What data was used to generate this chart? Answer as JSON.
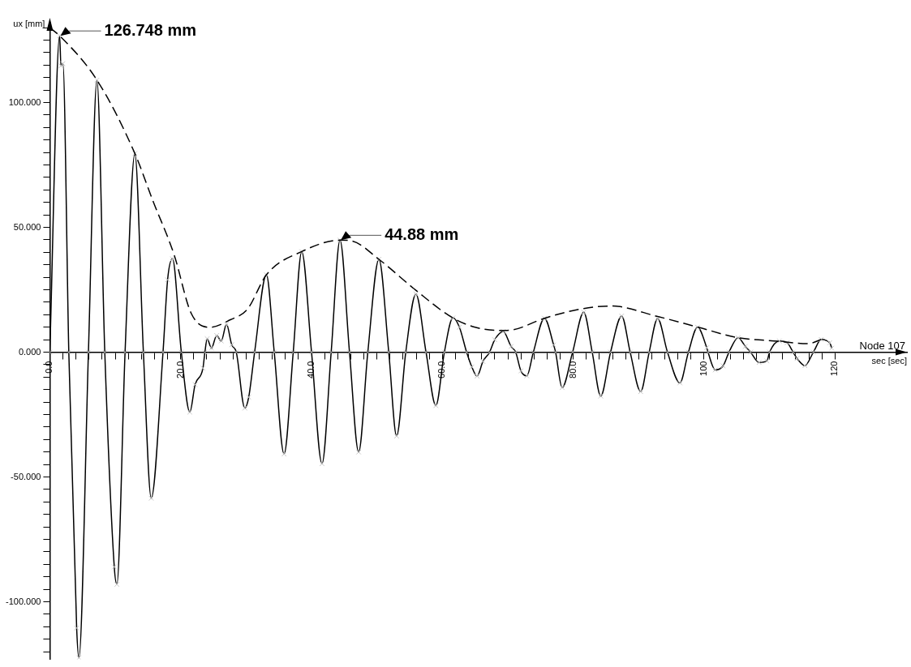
{
  "chart_data": {
    "type": "line",
    "ylabel": "ux [mm]",
    "xlabel": "sec [sec]",
    "xlim": [
      0,
      131
    ],
    "ylim": [
      -123,
      132
    ],
    "xticks": [
      {
        "value": 0,
        "label": "0.0"
      },
      {
        "value": 2,
        "label": null
      },
      {
        "value": 4,
        "label": null
      },
      {
        "value": 6,
        "label": null
      },
      {
        "value": 8,
        "label": null
      },
      {
        "value": 10,
        "label": null
      },
      {
        "value": 12,
        "label": null
      },
      {
        "value": 14,
        "label": null
      },
      {
        "value": 16,
        "label": null
      },
      {
        "value": 18,
        "label": null
      },
      {
        "value": 20,
        "label": "20.0"
      },
      {
        "value": 22,
        "label": null
      },
      {
        "value": 24,
        "label": null
      },
      {
        "value": 26,
        "label": null
      },
      {
        "value": 28,
        "label": null
      },
      {
        "value": 30,
        "label": null
      },
      {
        "value": 32,
        "label": null
      },
      {
        "value": 34,
        "label": null
      },
      {
        "value": 36,
        "label": null
      },
      {
        "value": 38,
        "label": null
      },
      {
        "value": 40,
        "label": "40.0"
      },
      {
        "value": 42,
        "label": null
      },
      {
        "value": 44,
        "label": null
      },
      {
        "value": 46,
        "label": null
      },
      {
        "value": 48,
        "label": null
      },
      {
        "value": 50,
        "label": null
      },
      {
        "value": 52,
        "label": null
      },
      {
        "value": 54,
        "label": null
      },
      {
        "value": 56,
        "label": null
      },
      {
        "value": 58,
        "label": null
      },
      {
        "value": 60,
        "label": "60.0"
      },
      {
        "value": 62,
        "label": null
      },
      {
        "value": 64,
        "label": null
      },
      {
        "value": 66,
        "label": null
      },
      {
        "value": 68,
        "label": null
      },
      {
        "value": 70,
        "label": null
      },
      {
        "value": 72,
        "label": null
      },
      {
        "value": 74,
        "label": null
      },
      {
        "value": 76,
        "label": null
      },
      {
        "value": 78,
        "label": null
      },
      {
        "value": 80,
        "label": "80.0"
      },
      {
        "value": 82,
        "label": null
      },
      {
        "value": 84,
        "label": null
      },
      {
        "value": 86,
        "label": null
      },
      {
        "value": 88,
        "label": null
      },
      {
        "value": 90,
        "label": null
      },
      {
        "value": 92,
        "label": null
      },
      {
        "value": 94,
        "label": null
      },
      {
        "value": 96,
        "label": null
      },
      {
        "value": 98,
        "label": null
      },
      100,
      {
        "value": 102,
        "label": null
      },
      {
        "value": 104,
        "label": null
      },
      {
        "value": 106,
        "label": null
      },
      {
        "value": 108,
        "label": null
      },
      {
        "value": 110,
        "label": null
      },
      {
        "value": 112,
        "label": null
      },
      {
        "value": 114,
        "label": null
      },
      {
        "value": 116,
        "label": null
      },
      {
        "value": 118,
        "label": null
      },
      120
    ],
    "yticks": [
      {
        "value": -120,
        "label": null
      },
      {
        "value": -115,
        "label": null
      },
      {
        "value": -110,
        "label": null
      },
      {
        "value": -105,
        "label": null
      },
      {
        "value": -100,
        "label": "-100.000"
      },
      {
        "value": -95,
        "label": null
      },
      {
        "value": -90,
        "label": null
      },
      {
        "value": -85,
        "label": null
      },
      {
        "value": -80,
        "label": null
      },
      {
        "value": -75,
        "label": null
      },
      {
        "value": -70,
        "label": null
      },
      {
        "value": -65,
        "label": null
      },
      {
        "value": -60,
        "label": null
      },
      {
        "value": -55,
        "label": null
      },
      {
        "value": -50,
        "label": "-50.000"
      },
      {
        "value": -45,
        "label": null
      },
      {
        "value": -40,
        "label": null
      },
      {
        "value": -35,
        "label": null
      },
      {
        "value": -30,
        "label": null
      },
      {
        "value": -25,
        "label": null
      },
      {
        "value": -20,
        "label": null
      },
      {
        "value": -15,
        "label": null
      },
      {
        "value": -10,
        "label": null
      },
      {
        "value": -5,
        "label": null
      },
      {
        "value": 0,
        "label": "0.000"
      },
      {
        "value": 5,
        "label": null
      },
      {
        "value": 10,
        "label": null
      },
      {
        "value": 15,
        "label": null
      },
      {
        "value": 20,
        "label": null
      },
      {
        "value": 25,
        "label": null
      },
      {
        "value": 30,
        "label": null
      },
      {
        "value": 35,
        "label": null
      },
      {
        "value": 40,
        "label": null
      },
      {
        "value": 45,
        "label": null
      },
      {
        "value": 50,
        "label": "50.000"
      },
      {
        "value": 55,
        "label": null
      },
      {
        "value": 60,
        "label": null
      },
      {
        "value": 65,
        "label": null
      },
      {
        "value": 70,
        "label": null
      },
      {
        "value": 75,
        "label": null
      },
      {
        "value": 80,
        "label": null
      },
      {
        "value": 85,
        "label": null
      },
      {
        "value": 90,
        "label": null
      },
      {
        "value": 95,
        "label": null
      },
      {
        "value": 100,
        "label": "100.000"
      },
      {
        "value": 105,
        "label": null
      },
      {
        "value": 110,
        "label": null
      },
      {
        "value": 115,
        "label": null
      },
      {
        "value": 120,
        "label": null
      },
      {
        "value": 125,
        "label": null
      },
      {
        "value": 130,
        "label": null
      }
    ],
    "grid": false,
    "legend": false,
    "annotations": [
      {
        "text": "126.748 mm",
        "x": 1.5,
        "y": 126.748
      },
      {
        "text": "44.88 mm",
        "x": 44.35,
        "y": 44.88
      },
      "Node 107"
    ],
    "series": [
      {
        "color": "#000000",
        "marker": "cross",
        "line_style": "solid",
        "x": [
          0,
          1.5,
          1.7,
          2.0,
          2.9,
          4.1,
          4.45,
          5.9,
          7.2,
          8.4,
          9.85,
          10.25,
          11.5,
          13.0,
          14.3,
          15.5,
          17.3,
          18.0,
          18.75,
          20.1,
          21.4,
          22.2,
          23.4,
          23.7,
          24.05,
          24.7,
          25.5,
          26.2,
          27.0,
          27.8,
          28.5,
          29.8,
          30.4,
          31.3,
          33.1,
          34.3,
          35.8,
          37.2,
          38.5,
          40.0,
          41.6,
          43.0,
          44.35,
          45.8,
          47.2,
          48.6,
          50.3,
          51.8,
          53.0,
          54.4,
          55.95,
          57.5,
          59.0,
          60.3,
          61.6,
          62.6,
          63.7,
          64.5,
          65.3,
          66.2,
          67.2,
          68.0,
          69.3,
          70.5,
          71.2,
          72.0,
          72.9,
          73.9,
          75.6,
          77.0,
          77.3,
          78.3,
          79.9,
          81.6,
          82.9,
          84.2,
          85.7,
          87.4,
          88.7,
          90.3,
          91.6,
          92.9,
          94.4,
          96.3,
          97.6,
          99.0,
          100.4,
          100.6,
          101.7,
          102.9,
          103.8,
          105.2,
          106.3,
          107.1,
          108.4,
          109.6,
          110.0,
          111.5,
          112.7,
          113.6,
          114.2,
          115.4,
          116.7,
          117.9,
          119.2,
          119.5
        ],
        "values": [
          0,
          126.748,
          114.7,
          115.6,
          0,
          -110.5,
          -122.4,
          0,
          109,
          0,
          -86,
          -93,
          0,
          79.6,
          0,
          -58.5,
          0,
          29,
          37.4,
          0,
          -24,
          -13,
          -6.4,
          0,
          5.4,
          1.6,
          6.7,
          4.5,
          11.2,
          3,
          0,
          -22.4,
          -18,
          0,
          31,
          0,
          -40.8,
          0,
          40.3,
          0,
          -44.7,
          0,
          44.88,
          0,
          -40,
          0,
          37.2,
          0,
          -33.6,
          0,
          23.3,
          0,
          -21.4,
          0,
          13.7,
          10,
          0,
          -5.9,
          -9.6,
          -3.7,
          0,
          5,
          8.3,
          2.3,
          0,
          -7.5,
          -9.5,
          0,
          13.6,
          2.9,
          0,
          -14.2,
          0,
          16,
          0,
          -17.6,
          0,
          14.5,
          0,
          -15.8,
          0,
          13.5,
          0,
          -12.3,
          0,
          10,
          1.8,
          0,
          -7.1,
          -5.5,
          0,
          5.8,
          2.3,
          0,
          -4.1,
          -3.5,
          0,
          4.5,
          3.8,
          0,
          -2.5,
          -5.4,
          0,
          5.1,
          3.8,
          1.6
        ]
      },
      {
        "color": "#000000",
        "marker": "none",
        "line_style": "dashed",
        "x": [
          0,
          1.5,
          7.2,
          13,
          15.7,
          19,
          21.6,
          24.5,
          27.6,
          30.2,
          33.1,
          38.5,
          44.35,
          46.1,
          50.3,
          55.9,
          61.6,
          65,
          68.7,
          70.8,
          75.6,
          81.6,
          85.8,
          92.9,
          99.1,
          105.2,
          111.3,
          115.9,
          117.9
        ],
        "values": [
          130,
          126.748,
          109,
          79.6,
          61,
          39,
          15.6,
          10,
          13,
          17.2,
          31,
          40.3,
          44.88,
          44.6,
          37.2,
          24.9,
          13.7,
          10,
          8.7,
          9,
          13.6,
          17.5,
          18.5,
          14.3,
          10,
          5.8,
          4.4,
          3.4,
          5.1
        ]
      }
    ]
  }
}
